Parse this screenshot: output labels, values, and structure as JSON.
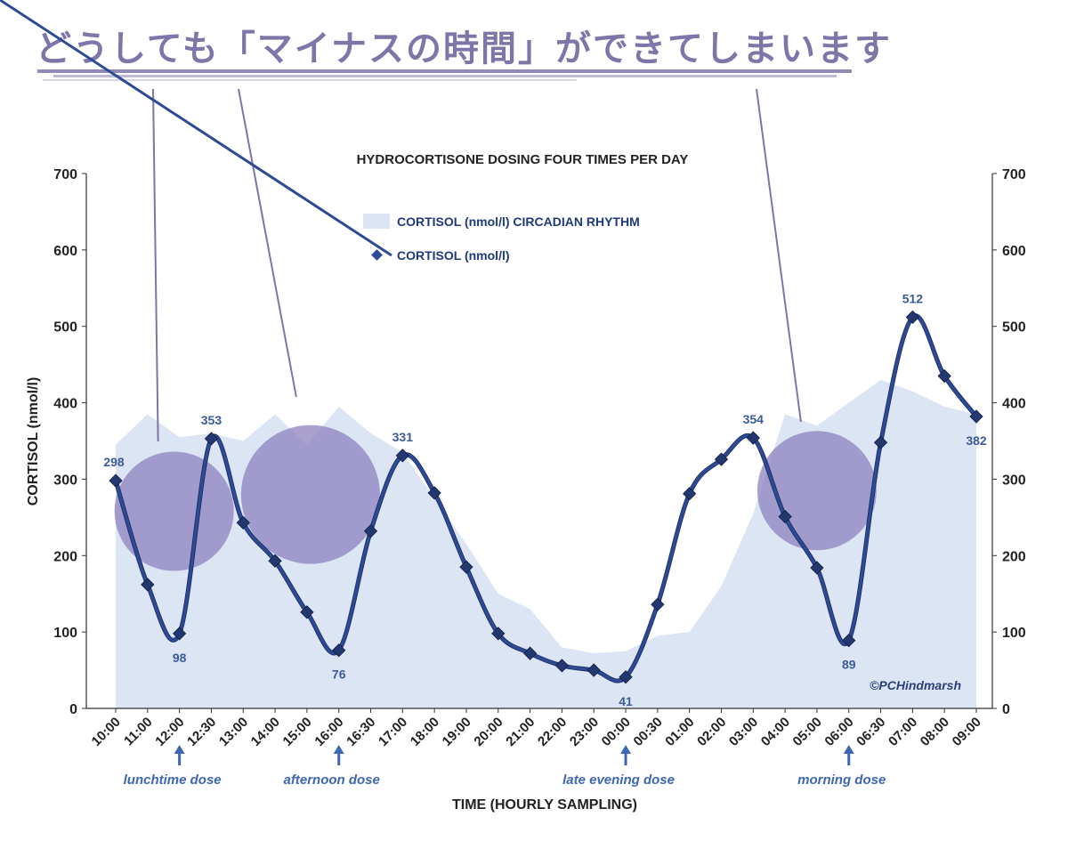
{
  "heading": "どうしても「マイナスの時間」ができてしまいます",
  "chart_data": {
    "type": "line",
    "title": "HYDROCORTISONE DOSING FOUR TIMES PER DAY",
    "xlabel": "TIME (HOURLY SAMPLING)",
    "ylabel": "CORTISOL (nmol/l)",
    "ylim": [
      0,
      700
    ],
    "yticks": [
      0,
      100,
      200,
      300,
      400,
      500,
      600,
      700
    ],
    "secondary_y_axis": true,
    "legend_position": "top-center",
    "categories": [
      "10:00",
      "11:00",
      "12:00",
      "12:30",
      "13:00",
      "14:00",
      "15:00",
      "16:00",
      "16:30",
      "17:00",
      "18:00",
      "19:00",
      "20:00",
      "21:00",
      "22:00",
      "23:00",
      "00:00",
      "00:30",
      "01:00",
      "02:00",
      "03:00",
      "04:00",
      "05:00",
      "06:00",
      "06:30",
      "07:00",
      "08:00",
      "09:00"
    ],
    "series": [
      {
        "name": "CORTISOL (nmol/l) CIRCADIAN RHYTHM",
        "type": "area",
        "color": "#dbe5f3",
        "values": [
          345,
          385,
          355,
          360,
          350,
          385,
          345,
          395,
          360,
          335,
          275,
          215,
          150,
          130,
          80,
          72,
          75,
          95,
          100,
          160,
          255,
          385,
          370,
          400,
          430,
          415,
          395,
          385
        ]
      },
      {
        "name": "CORTISOL (nmol/l)",
        "type": "line",
        "color": "#2d4a94",
        "values": [
          298,
          162,
          98,
          353,
          243,
          193,
          126,
          76,
          232,
          331,
          282,
          185,
          98,
          72,
          56,
          50,
          41,
          136,
          281,
          326,
          354,
          251,
          184,
          89,
          348,
          512,
          435,
          382
        ]
      }
    ],
    "data_labels": [
      {
        "category": "10:00",
        "text": "298"
      },
      {
        "category": "12:00",
        "text": "98"
      },
      {
        "category": "12:30",
        "text": "353"
      },
      {
        "category": "16:00",
        "text": "76"
      },
      {
        "category": "17:00",
        "text": "331"
      },
      {
        "category": "00:00",
        "text": "41"
      },
      {
        "category": "03:00",
        "text": "354"
      },
      {
        "category": "06:00",
        "text": "89"
      },
      {
        "category": "07:00",
        "text": "512"
      },
      {
        "category": "09:00",
        "text": "382"
      }
    ],
    "dose_annotations": [
      {
        "category": "12:00",
        "text": "lunchtime dose"
      },
      {
        "category": "16:00",
        "text": "afternoon dose"
      },
      {
        "category": "00:00",
        "text": "late evening dose"
      },
      {
        "category": "06:00",
        "text": "morning dose"
      }
    ],
    "highlight_circles": [
      {
        "category": "12:00",
        "value": 258
      },
      {
        "category": "15:00",
        "value": 280
      },
      {
        "category": "05:00",
        "value": 285
      }
    ],
    "credit": "©PCHindmarsh"
  },
  "colors": {
    "heading": "#7e75a9",
    "area": "#dbe5f3",
    "line": "#2d4a94",
    "circle": "#8a7dbd",
    "dose_text": "#3d66b3"
  }
}
